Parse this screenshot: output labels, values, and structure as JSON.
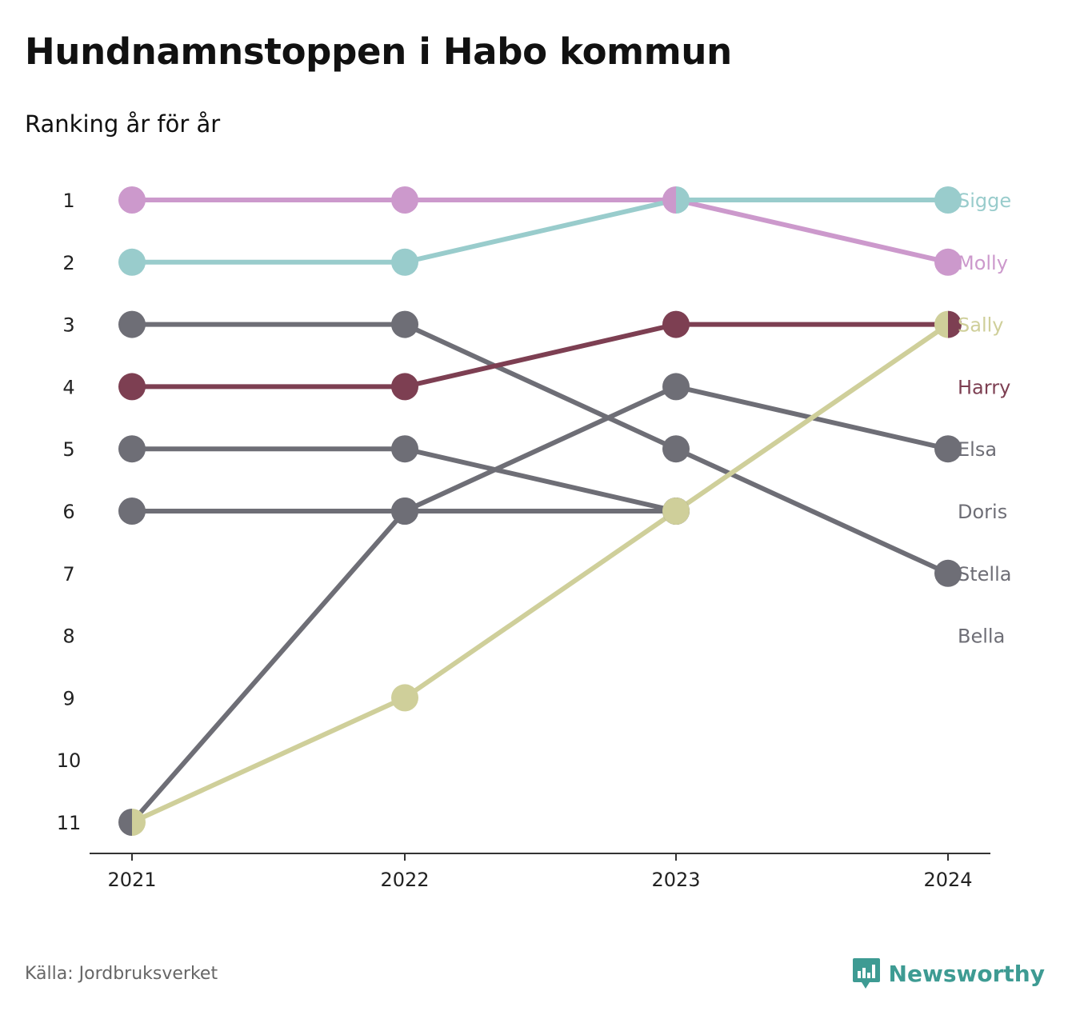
{
  "header": {
    "title": "Hundnamnstoppen i Habo kommun",
    "subtitle": "Ranking år för år"
  },
  "footer": {
    "source": "Källa: Jordbruksverket",
    "brand": "Newsworthy",
    "brand_icon": "newsworthy-logo-icon",
    "brand_color": "#3e9b93"
  },
  "chart_data": {
    "type": "line",
    "chart_kind": "bump",
    "x": [
      "2021",
      "2022",
      "2023",
      "2024"
    ],
    "y_ticks": [
      "1",
      "2",
      "3",
      "4",
      "5",
      "6",
      "7",
      "8",
      "9",
      "10",
      "11"
    ],
    "ylim": [
      1,
      11
    ],
    "y_inverted": true,
    "grid": false,
    "series": [
      {
        "name": "Bella",
        "color": "#6e6e76",
        "values": [
          6,
          6,
          6,
          null
        ]
      },
      {
        "name": "Doris",
        "color": "#6e6e76",
        "values": [
          5,
          5,
          6,
          null
        ]
      },
      {
        "name": "Stella",
        "color": "#6e6e76",
        "values": [
          11,
          6,
          4,
          5
        ]
      },
      {
        "name": "Elsa",
        "color": "#6e6e76",
        "values": [
          3,
          3,
          5,
          7
        ]
      },
      {
        "name": "Sally",
        "color": "#cfcf9a",
        "values": [
          11,
          9,
          6,
          3
        ]
      },
      {
        "name": "Harry",
        "color": "#7d3f52",
        "values": [
          4,
          4,
          3,
          3
        ]
      },
      {
        "name": "Molly",
        "color": "#cc99cc",
        "values": [
          1,
          1,
          1,
          2
        ]
      },
      {
        "name": "Sigge",
        "color": "#99cccc",
        "values": [
          2,
          2,
          1,
          1
        ]
      }
    ],
    "end_labels": [
      {
        "text": "Sigge",
        "rank": 1,
        "color": "#99cccc"
      },
      {
        "text": "Molly",
        "rank": 2,
        "color": "#cc99cc"
      },
      {
        "text": "Sally",
        "rank": 3,
        "color": "#cfcf9a"
      },
      {
        "text": "Harry",
        "rank": 4,
        "color": "#7d3f52"
      },
      {
        "text": "Elsa",
        "rank": 5,
        "color": "#6e6e76"
      },
      {
        "text": "Doris",
        "rank": 6,
        "color": "#6e6e76"
      },
      {
        "text": "Stella",
        "rank": 7,
        "color": "#6e6e76"
      },
      {
        "text": "Bella",
        "rank": 8,
        "color": "#6e6e76"
      }
    ]
  }
}
